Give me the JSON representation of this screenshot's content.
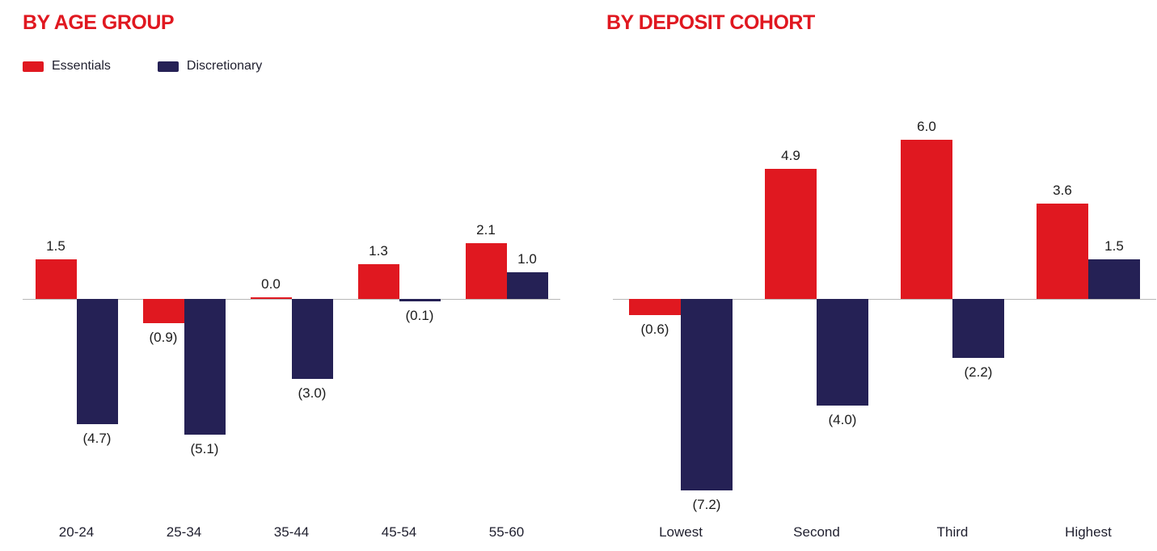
{
  "colors": {
    "essentials": "#e01820",
    "discretionary": "#252155",
    "title": "#e01820",
    "axis_line": "#b8b8b8",
    "text": "#1f1f2e"
  },
  "legend": {
    "items": [
      {
        "label": "Essentials",
        "color_key": "essentials"
      },
      {
        "label": "Discretionary",
        "color_key": "discretionary"
      }
    ]
  },
  "chart_data": [
    {
      "type": "bar",
      "title": "BY AGE GROUP",
      "categories": [
        "20-24",
        "25-34",
        "35-44",
        "45-54",
        "55-60"
      ],
      "series": [
        {
          "name": "Essentials",
          "values": [
            1.5,
            -0.9,
            0.0,
            1.3,
            2.1
          ]
        },
        {
          "name": "Discretionary",
          "values": [
            -4.7,
            -5.1,
            -3.0,
            -0.1,
            1.0
          ]
        }
      ],
      "value_label_format": "negative-in-parentheses",
      "ylim": [
        -7.6,
        6.7
      ],
      "grid": false,
      "legend_position": "top-left"
    },
    {
      "type": "bar",
      "title": "BY DEPOSIT COHORT",
      "categories": [
        "Lowest",
        "Second",
        "Third",
        "Highest"
      ],
      "series": [
        {
          "name": "Essentials",
          "values": [
            -0.6,
            4.9,
            6.0,
            3.6
          ]
        },
        {
          "name": "Discretionary",
          "values": [
            -7.2,
            -4.0,
            -2.2,
            1.5
          ]
        }
      ],
      "value_label_format": "negative-in-parentheses",
      "ylim": [
        -7.6,
        6.7
      ],
      "grid": false,
      "legend_position": "none"
    }
  ]
}
